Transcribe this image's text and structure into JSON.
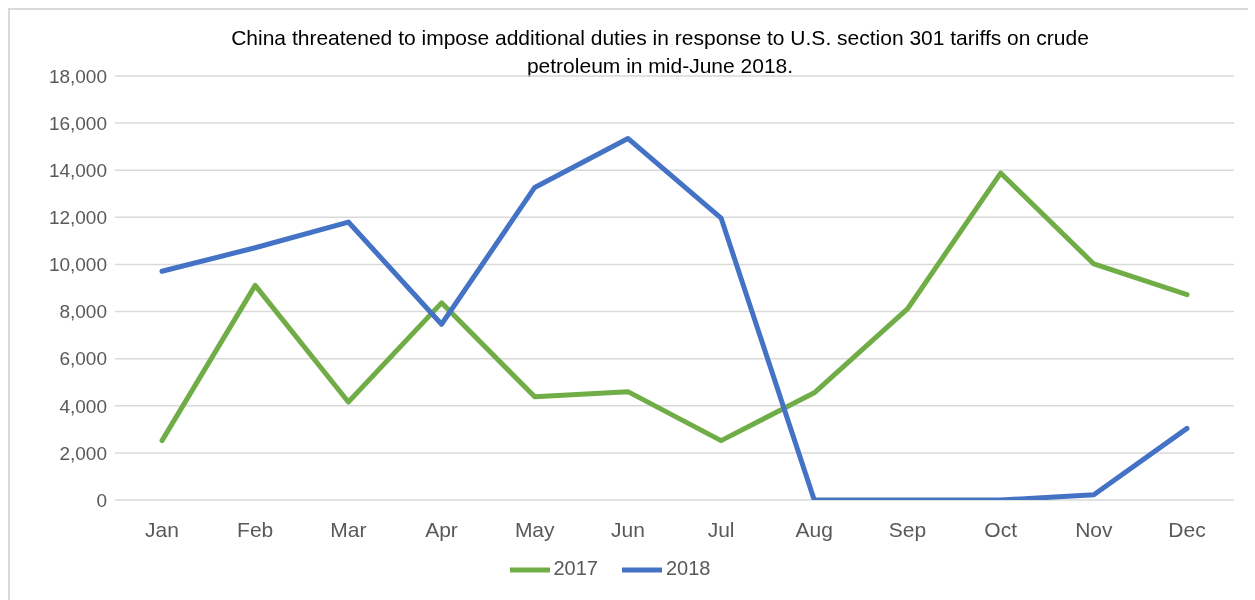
{
  "chart_data": {
    "type": "line",
    "title": "China threatened to impose additional duties in response to U.S. section 301 tariffs on crude petroleum in mid-June 2018.",
    "categories": [
      "Jan",
      "Feb",
      "Mar",
      "Apr",
      "May",
      "Jun",
      "Jul",
      "Aug",
      "Sep",
      "Oct",
      "Nov",
      "Dec"
    ],
    "series": [
      {
        "name": "2017",
        "color": "#70ad47",
        "values": [
          2520,
          9110,
          4160,
          8370,
          4380,
          4600,
          2520,
          4550,
          8110,
          13880,
          10020,
          8720
        ]
      },
      {
        "name": "2018",
        "color": "#4472c4",
        "values": [
          9710,
          10710,
          11800,
          7460,
          13270,
          15350,
          11970,
          0,
          0,
          0,
          220,
          3040
        ]
      }
    ],
    "ylim": [
      0,
      18000
    ],
    "yticks": [
      0,
      {
        "value": 2000,
        "label": "2,000"
      },
      {
        "value": 4000,
        "label": "4,000"
      },
      {
        "value": 6000,
        "label": "6,000"
      },
      {
        "value": 8000,
        "label": "8,000"
      },
      {
        "value": 10000,
        "label": "10,000"
      },
      {
        "value": 12000,
        "label": "12,000"
      },
      {
        "value": 14000,
        "label": "14,000"
      },
      {
        "value": 16000,
        "label": "16,000"
      },
      {
        "value": 18000,
        "label": "18,000"
      }
    ],
    "grid": "y",
    "legend": "bottom",
    "marker": "none",
    "line_style": "solid"
  }
}
